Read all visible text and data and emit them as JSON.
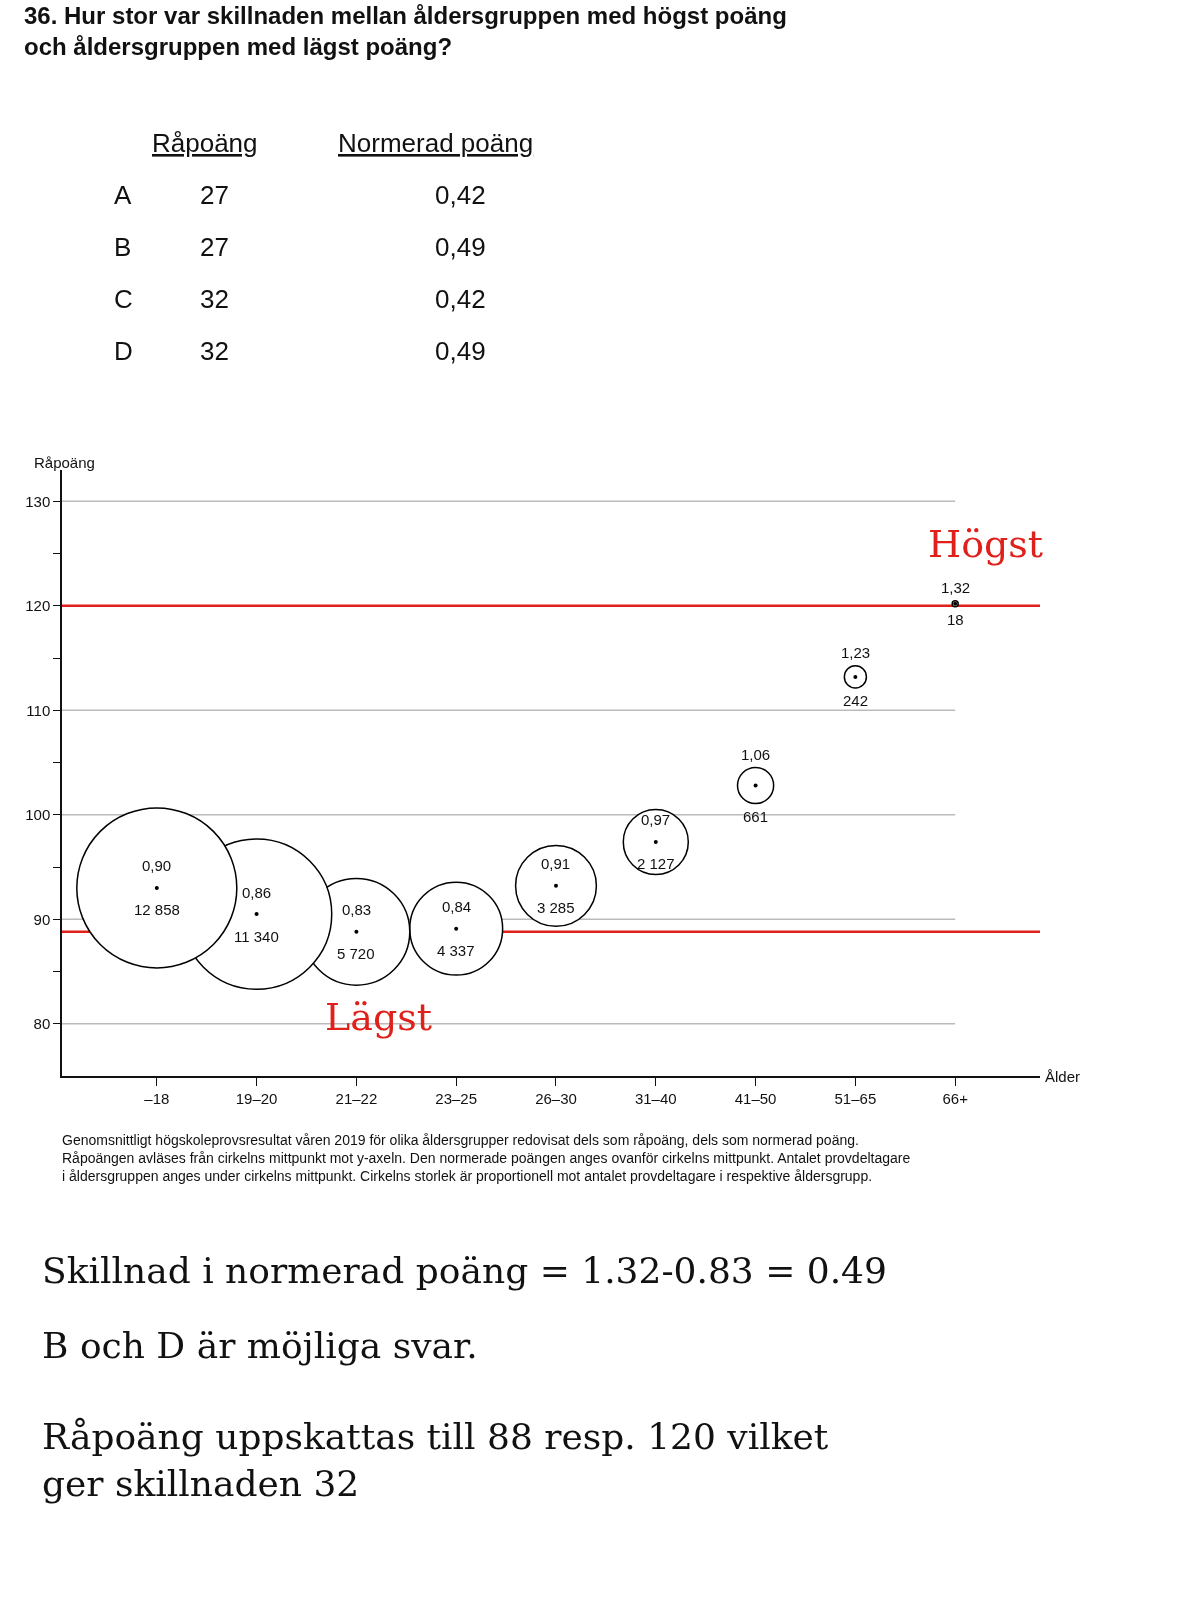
{
  "chart_data": {
    "type": "bubble",
    "title": "36. Hur stor var skillnaden mellan åldersgruppen med högst poäng\noch åldersgruppen med lägst poäng?",
    "ylabel": "Råpoäng",
    "categories": [
      "–18",
      "19–20",
      "21–22",
      "23–25",
      "26–30",
      "31–40",
      "41–50",
      "51–65",
      "66+"
    ],
    "series": [
      {
        "color": "#000000",
        "values": [
          93.0,
          90.5,
          88.8,
          89.1,
          93.2,
          97.4,
          102.8,
          113.2,
          120.2
        ],
        "sizes": [
          1,
          0.882,
          0.445,
          0.337,
          0.255,
          0.165,
          0.051,
          0.019,
          0.0014
        ]
      }
    ],
    "ylim": [
      75,
      133
    ],
    "yticks": [
      80,
      {
        "value": 85,
        "label": null
      },
      90,
      {
        "value": 95,
        "label": null
      },
      100,
      {
        "value": 105,
        "label": null
      },
      110,
      {
        "value": 115,
        "label": null
      },
      120,
      {
        "value": 125,
        "label": null
      },
      130
    ],
    "grid": "y",
    "legend": false,
    "ref_lines": [
      {
        "axis": "y",
        "value": 120,
        "color": "#e0201b"
      },
      {
        "axis": "y",
        "value": 88.8,
        "color": "#e0201b"
      }
    ],
    "annotations": [
      {
        "text": "0,90",
        "x": "–18",
        "y": 93.0
      },
      {
        "text": "0,86",
        "x": "19–20",
        "y": 90.5
      },
      {
        "text": "0,83",
        "x": "21–22",
        "y": 88.8
      },
      {
        "text": "0,84",
        "x": "23–25",
        "y": 89.1
      },
      {
        "text": "0,91",
        "x": "26–30",
        "y": 93.2
      },
      {
        "text": "0,97",
        "x": "31–40",
        "y": 97.4
      },
      {
        "text": "1,06",
        "x": "41–50",
        "y": 102.8
      },
      {
        "text": "1,23",
        "x": "51–65",
        "y": 113.2
      },
      {
        "text": "1,32",
        "x": "66+",
        "y": 120.2
      },
      {
        "text": "12 858",
        "x": "–18",
        "y": 93.0
      },
      {
        "text": "11 340",
        "x": "19–20",
        "y": 90.5
      },
      {
        "text": "5 720",
        "x": "21–22",
        "y": 88.8
      },
      {
        "text": "4 337",
        "x": "23–25",
        "y": 89.1
      },
      {
        "text": "3 285",
        "x": "26–30",
        "y": 93.2
      },
      {
        "text": "2 127",
        "x": "31–40",
        "y": 97.4
      },
      {
        "text": "661",
        "x": "41–50",
        "y": 102.8
      },
      {
        "text": "242",
        "x": "51–65",
        "y": 113.2
      },
      {
        "text": "18",
        "x": "66+",
        "y": 120.2
      },
      {
        "text": "Högst",
        "x": "66+",
        "y": 120.2
      },
      {
        "text": "Lägst",
        "x": "21–22",
        "y": 88.8
      },
      "Råpoäng",
      "Normerad poäng",
      "A",
      "27",
      "0,42",
      "B",
      "27",
      "0,49",
      "C",
      "32",
      "0,42",
      "D",
      "32",
      "0,49",
      "Genomsnittligt högskoleprovsresultat våren 2019 för olika åldersgrupper redovisat dels som råpoäng, dels som normerad poäng.\nRåpoängen avläses från cirkelns mittpunkt mot y-axeln. Den normerade poängen anges ovanför cirkelns mittpunkt. Antalet provdeltagare\ni åldersgruppen anges under cirkelns mittpunkt. Cirkelns storlek är proportionell mot antalet provdeltagare i respektive åldersgrupp.",
      "Skillnad i normerad poäng = 1.32-0.83 = 0.49",
      "B och D är möjliga svar.",
      "Råpoäng uppskattas till 88 resp. 120 vilket\nger skillnaden 32",
      "Ålder"
    ]
  }
}
